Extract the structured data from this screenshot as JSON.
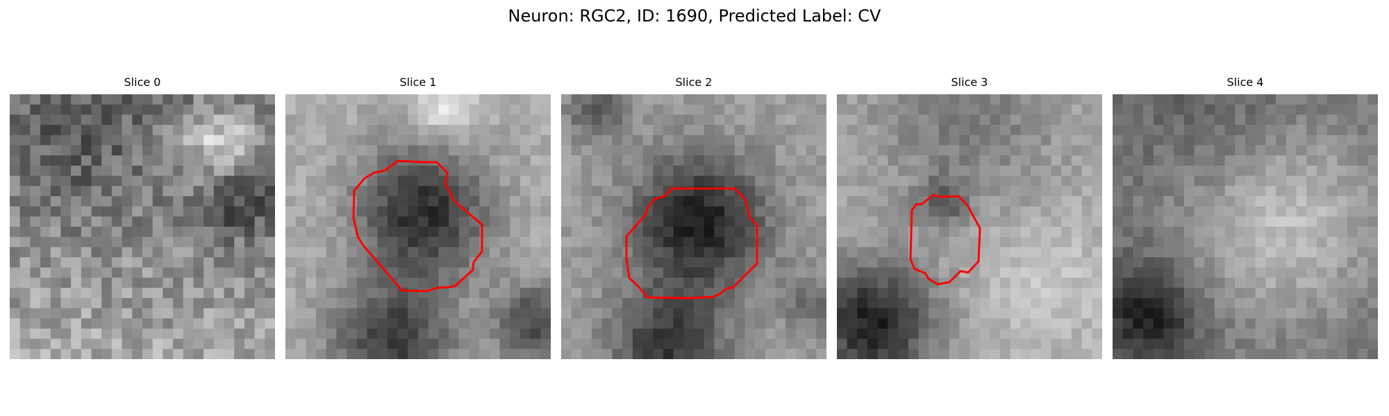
{
  "figure": {
    "title": "Neuron: RGC2, ID: 1690, Predicted Label: CV"
  },
  "panels": [
    {
      "title": "Slice 0",
      "has_contour": false
    },
    {
      "title": "Slice 1",
      "has_contour": true
    },
    {
      "title": "Slice 2",
      "has_contour": true
    },
    {
      "title": "Slice 3",
      "has_contour": true
    },
    {
      "title": "Slice 4",
      "has_contour": false
    }
  ],
  "colors": {
    "contour": "#ff0000",
    "image_cmap": "gray"
  }
}
